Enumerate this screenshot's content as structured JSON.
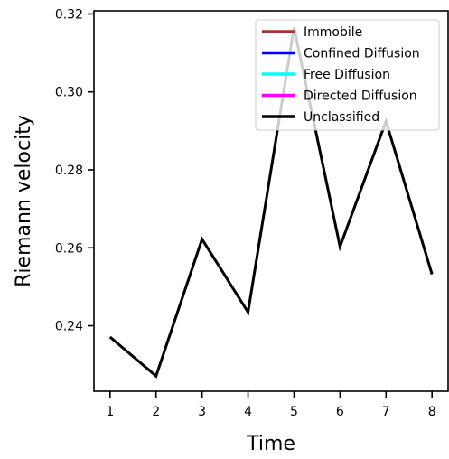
{
  "chart_data": {
    "type": "line",
    "title": "",
    "xlabel": "Time",
    "ylabel": "Riemann velocity",
    "x": [
      1,
      2,
      3,
      4,
      5,
      6,
      7,
      8
    ],
    "xlim": [
      0.65,
      8.35
    ],
    "ylim": [
      0.2232,
      0.3208
    ],
    "xticks": [
      1,
      2,
      3,
      4,
      5,
      6,
      7,
      8
    ],
    "xtick_labels": [
      "1",
      "2",
      "3",
      "4",
      "5",
      "6",
      "7",
      "8"
    ],
    "yticks": [
      0.24,
      0.26,
      0.28,
      0.3,
      0.32
    ],
    "ytick_labels": [
      "0.24",
      "0.26",
      "0.28",
      "0.30",
      "0.32"
    ],
    "grid": false,
    "legend_position": "top-right",
    "legend": [
      {
        "name": "Immobile",
        "color": "#a83232"
      },
      {
        "name": "Confined Diffusion",
        "color": "#0000ff"
      },
      {
        "name": "Free Diffusion",
        "color": "#00ffff"
      },
      {
        "name": "Directed Diffusion",
        "color": "#ff00ff"
      },
      {
        "name": "Unclassified",
        "color": "#000000"
      }
    ],
    "series": [
      {
        "name": "Unclassified",
        "color": "#000000",
        "values": [
          0.2371,
          0.2271,
          0.2622,
          0.2435,
          0.3165,
          0.2603,
          0.2925,
          0.2532
        ]
      }
    ]
  }
}
